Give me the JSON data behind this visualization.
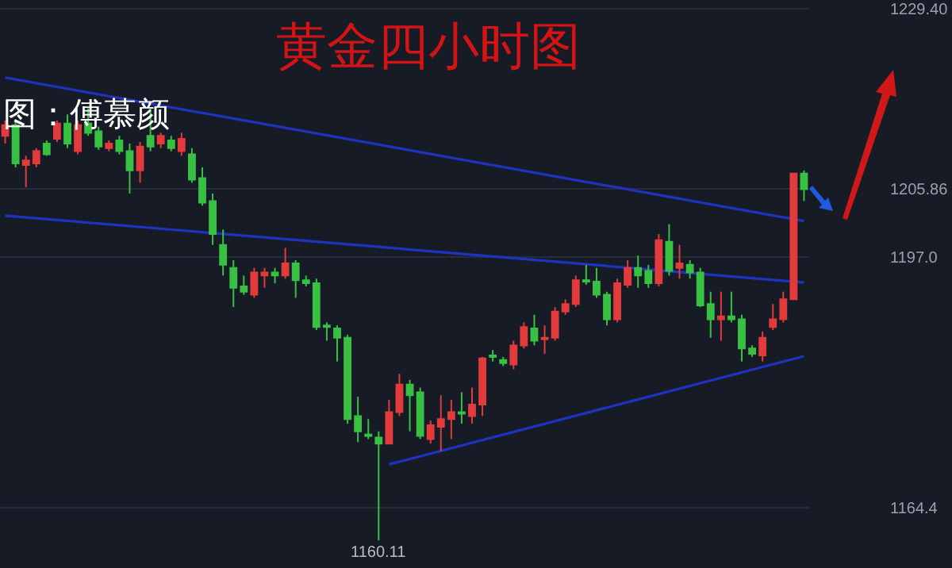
{
  "chart_data": {
    "type": "candlestick",
    "title": "黄金四小时图",
    "annotations": [
      "图：傅慕颜",
      "1160.11"
    ],
    "categories": [
      null,
      null,
      null,
      null,
      null,
      null,
      null,
      null,
      null,
      null,
      null,
      null,
      null,
      null,
      null,
      null,
      null,
      null,
      null,
      null,
      null,
      null,
      null,
      null,
      null,
      null,
      null,
      null,
      null,
      null,
      null,
      null,
      null,
      null,
      null,
      null,
      null,
      null,
      null,
      null,
      null,
      null,
      null,
      null,
      null,
      null,
      null,
      null,
      null,
      null,
      null,
      null,
      null,
      null,
      null,
      null,
      null,
      null,
      null,
      null,
      null,
      null,
      null,
      null,
      null,
      null,
      null,
      null,
      null,
      null,
      null,
      null,
      null,
      null,
      null,
      null,
      null,
      null
    ],
    "ohlc": [
      [
        1212.8,
        1214.8,
        1211.8,
        1214.2
      ],
      [
        1214.2,
        1214.8,
        1208.7,
        1209.2
      ],
      [
        1209.0,
        1210.2,
        1206.1,
        1209.6
      ],
      [
        1209.2,
        1211.2,
        1208.7,
        1210.8
      ],
      [
        1211.8,
        1212.2,
        1210.2,
        1210.4
      ],
      [
        1212.4,
        1214.8,
        1212.0,
        1214.4
      ],
      [
        1214.4,
        1215.6,
        1211.2,
        1211.8
      ],
      [
        1210.8,
        1214.8,
        1210.4,
        1214.2
      ],
      [
        1214.4,
        1216.4,
        1212.8,
        1213.2
      ],
      [
        1213.4,
        1214.0,
        1211.0,
        1211.4
      ],
      [
        1211.2,
        1212.2,
        1210.8,
        1211.8
      ],
      [
        1212.2,
        1212.8,
        1210.4,
        1210.8
      ],
      [
        1210.8,
        1211.8,
        1205.3,
        1208.3
      ],
      [
        1208.3,
        1212.0,
        1206.7,
        1211.4
      ],
      [
        1212.8,
        1216.4,
        1210.8,
        1211.4
      ],
      [
        1211.8,
        1213.2,
        1211.2,
        1212.8
      ],
      [
        1212.2,
        1212.8,
        1210.8,
        1211.2
      ],
      [
        1210.8,
        1213.2,
        1210.2,
        1212.4
      ],
      [
        1210.4,
        1211.2,
        1206.7,
        1207.1
      ],
      [
        1207.3,
        1208.7,
        1203.7,
        1204.1
      ],
      [
        1204.3,
        1205.3,
        1198.6,
        1200.0
      ],
      [
        1198.6,
        1200.6,
        1194.6,
        1196.0
      ],
      [
        1195.6,
        1196.6,
        1190.5,
        1193.0
      ],
      [
        1193.2,
        1194.6,
        1192.1,
        1192.5
      ],
      [
        1192.1,
        1195.6,
        1191.7,
        1195.0
      ],
      [
        1194.6,
        1195.6,
        1193.0,
        1195.0
      ],
      [
        1195.0,
        1195.6,
        1193.6,
        1194.6
      ],
      [
        1194.6,
        1198.2,
        1194.2,
        1196.2
      ],
      [
        1196.2,
        1196.6,
        1191.7,
        1194.0
      ],
      [
        1194.0,
        1194.6,
        1193.2,
        1193.6
      ],
      [
        1193.6,
        1194.2,
        1187.5,
        1187.9
      ],
      [
        1188.1,
        1188.5,
        1186.1,
        1187.9
      ],
      [
        1187.7,
        1188.1,
        1183.4,
        1186.5
      ],
      [
        1186.5,
        1186.9,
        1175.3,
        1175.9
      ],
      [
        1176.3,
        1178.8,
        1172.9,
        1174.3
      ],
      [
        1173.9,
        1175.9,
        1173.3,
        1173.7
      ],
      [
        1173.5,
        1174.3,
        1160.11,
        1172.7
      ],
      [
        1172.7,
        1178.4,
        1172.7,
        1176.8
      ],
      [
        1176.8,
        1181.8,
        1176.3,
        1180.4
      ],
      [
        1180.4,
        1181.0,
        1174.3,
        1179.0
      ],
      [
        1179.4,
        1180.0,
        1173.3,
        1173.7
      ],
      [
        1173.3,
        1175.7,
        1172.7,
        1175.1
      ],
      [
        1174.9,
        1179.0,
        1171.7,
        1175.9
      ],
      [
        1175.9,
        1178.4,
        1173.3,
        1176.8
      ],
      [
        1176.8,
        1179.4,
        1175.3,
        1176.6
      ],
      [
        1176.3,
        1180.0,
        1175.3,
        1177.8
      ],
      [
        1177.8,
        1184.0,
        1176.3,
        1183.8
      ],
      [
        1184.2,
        1184.9,
        1183.4,
        1184.0
      ],
      [
        1183.6,
        1184.0,
        1182.8,
        1183.2
      ],
      [
        1183.0,
        1186.1,
        1182.4,
        1185.5
      ],
      [
        1185.5,
        1188.5,
        1185.1,
        1187.9
      ],
      [
        1187.7,
        1189.5,
        1185.5,
        1186.1
      ],
      [
        1186.3,
        1188.1,
        1184.4,
        1186.5
      ],
      [
        1186.5,
        1190.5,
        1186.1,
        1189.9
      ],
      [
        1189.9,
        1191.5,
        1189.5,
        1190.9
      ],
      [
        1190.9,
        1194.6,
        1190.5,
        1194.0
      ],
      [
        1194.0,
        1196.0,
        1193.4,
        1193.8
      ],
      [
        1193.8,
        1195.6,
        1191.7,
        1192.1
      ],
      [
        1192.1,
        1192.5,
        1188.1,
        1188.9
      ],
      [
        1188.9,
        1194.2,
        1188.5,
        1193.6
      ],
      [
        1193.4,
        1196.6,
        1193.0,
        1195.6
      ],
      [
        1195.6,
        1197.2,
        1193.0,
        1194.6
      ],
      [
        1195.2,
        1196.0,
        1193.0,
        1193.6
      ],
      [
        1193.6,
        1200.0,
        1193.2,
        1199.2
      ],
      [
        1199.0,
        1201.3,
        1194.6,
        1195.2
      ],
      [
        1195.6,
        1198.6,
        1194.2,
        1196.2
      ],
      [
        1196.0,
        1196.6,
        1194.2,
        1195.0
      ],
      [
        1195.0,
        1195.6,
        1190.5,
        1190.7
      ],
      [
        1190.9,
        1192.5,
        1186.5,
        1188.9
      ],
      [
        1188.9,
        1192.5,
        1186.1,
        1189.3
      ],
      [
        1189.3,
        1192.5,
        1188.5,
        1188.9
      ],
      [
        1188.9,
        1189.5,
        1183.4,
        1185.1
      ],
      [
        1185.1,
        1185.5,
        1184.0,
        1184.4
      ],
      [
        1184.2,
        1187.3,
        1183.4,
        1186.5
      ],
      [
        1187.9,
        1190.9,
        1187.5,
        1188.9
      ],
      [
        1188.9,
        1192.5,
        1188.5,
        1191.5
      ],
      [
        1191.5,
        1207.9,
        1191.5,
        1207.9
      ],
      [
        1207.9,
        1208.3,
        1204.3,
        1205.86
      ]
    ],
    "series": [
      {
        "type": "line",
        "color": "#1f33c0",
        "values": [
          1220.4,
          null,
          null,
          null,
          null,
          null,
          null,
          null,
          null,
          null,
          null,
          null,
          null,
          null,
          null,
          null,
          null,
          null,
          null,
          null,
          null,
          null,
          null,
          null,
          null,
          null,
          null,
          null,
          null,
          null,
          null,
          null,
          null,
          null,
          null,
          null,
          null,
          null,
          null,
          null,
          null,
          null,
          null,
          null,
          null,
          null,
          null,
          null,
          null,
          null,
          null,
          null,
          null,
          null,
          null,
          null,
          null,
          null,
          null,
          null,
          null,
          null,
          null,
          null,
          null,
          null,
          null,
          null,
          null,
          null,
          null,
          null,
          null,
          null,
          null,
          null,
          null,
          1201.7
        ]
      },
      {
        "type": "line",
        "color": "#1f33c0",
        "values": [
          1202.4,
          null,
          null,
          null,
          null,
          null,
          null,
          null,
          null,
          null,
          null,
          null,
          null,
          null,
          null,
          null,
          null,
          null,
          null,
          null,
          null,
          null,
          null,
          null,
          null,
          null,
          null,
          null,
          null,
          null,
          null,
          null,
          null,
          null,
          null,
          null,
          null,
          null,
          null,
          null,
          null,
          null,
          null,
          null,
          null,
          null,
          null,
          null,
          null,
          null,
          null,
          null,
          null,
          null,
          null,
          null,
          null,
          null,
          null,
          null,
          null,
          null,
          null,
          null,
          null,
          null,
          null,
          null,
          null,
          null,
          null,
          null,
          null,
          null,
          null,
          null,
          null,
          1193.7
        ]
      },
      {
        "type": "line",
        "color": "#1f33c0",
        "values": [
          null,
          null,
          null,
          null,
          null,
          null,
          null,
          null,
          null,
          null,
          null,
          null,
          null,
          null,
          null,
          null,
          null,
          null,
          null,
          null,
          null,
          null,
          null,
          null,
          null,
          null,
          null,
          null,
          null,
          null,
          null,
          null,
          null,
          null,
          null,
          null,
          null,
          1170.0,
          null,
          null,
          null,
          null,
          null,
          null,
          null,
          null,
          null,
          null,
          null,
          null,
          null,
          null,
          null,
          null,
          null,
          null,
          null,
          null,
          null,
          null,
          null,
          null,
          null,
          null,
          null,
          null,
          null,
          null,
          null,
          null,
          null,
          null,
          null,
          null,
          null,
          null,
          null,
          1184.1
        ]
      }
    ],
    "ylim": [
      1156.5,
      1230.5
    ],
    "yticks": [
      {
        "value": 1164.4,
        "label": "1164.4"
      },
      {
        "value": 1197.0,
        "label": "1197.0"
      },
      {
        "value": 1205.86,
        "label": "1205.86"
      },
      {
        "value": 1229.4,
        "label": "1229.40"
      }
    ],
    "grid": "y",
    "tick_labels": "y"
  }
}
